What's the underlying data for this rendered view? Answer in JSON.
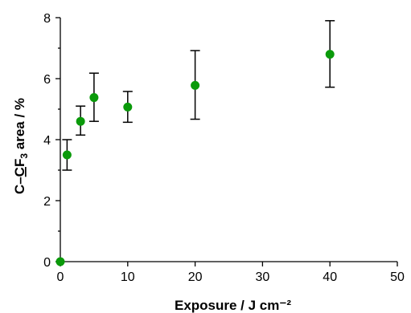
{
  "chart_data": {
    "type": "scatter",
    "title": "",
    "xlabel": "Exposure / J cm⁻²",
    "ylabel": {
      "prefix": "C–",
      "underlined": "C",
      "mid": "F",
      "subscript": "3",
      "suffix": " area / %"
    },
    "xlim": [
      0,
      50
    ],
    "ylim": [
      0,
      8
    ],
    "x_ticks": [
      "0",
      "10",
      "20",
      "30",
      "40",
      "50"
    ],
    "y_ticks": [
      "0",
      "2",
      "4",
      "6",
      "8"
    ],
    "grid": false,
    "legend": "none",
    "marker_color": "#0a9a0a",
    "series": [
      {
        "points": [
          {
            "x": 0,
            "y": 0.0,
            "err_low": 0.0,
            "err_high": 0.0
          },
          {
            "x": 1,
            "y": 3.5,
            "err_low": 3.0,
            "err_high": 4.0
          },
          {
            "x": 3,
            "y": 4.6,
            "err_low": 4.15,
            "err_high": 5.1
          },
          {
            "x": 5,
            "y": 5.38,
            "err_low": 4.6,
            "err_high": 6.18
          },
          {
            "x": 10,
            "y": 5.07,
            "err_low": 4.57,
            "err_high": 5.58
          },
          {
            "x": 20,
            "y": 5.78,
            "err_low": 4.67,
            "err_high": 6.92
          },
          {
            "x": 40,
            "y": 6.8,
            "err_low": 5.72,
            "err_high": 7.9
          }
        ]
      }
    ]
  }
}
